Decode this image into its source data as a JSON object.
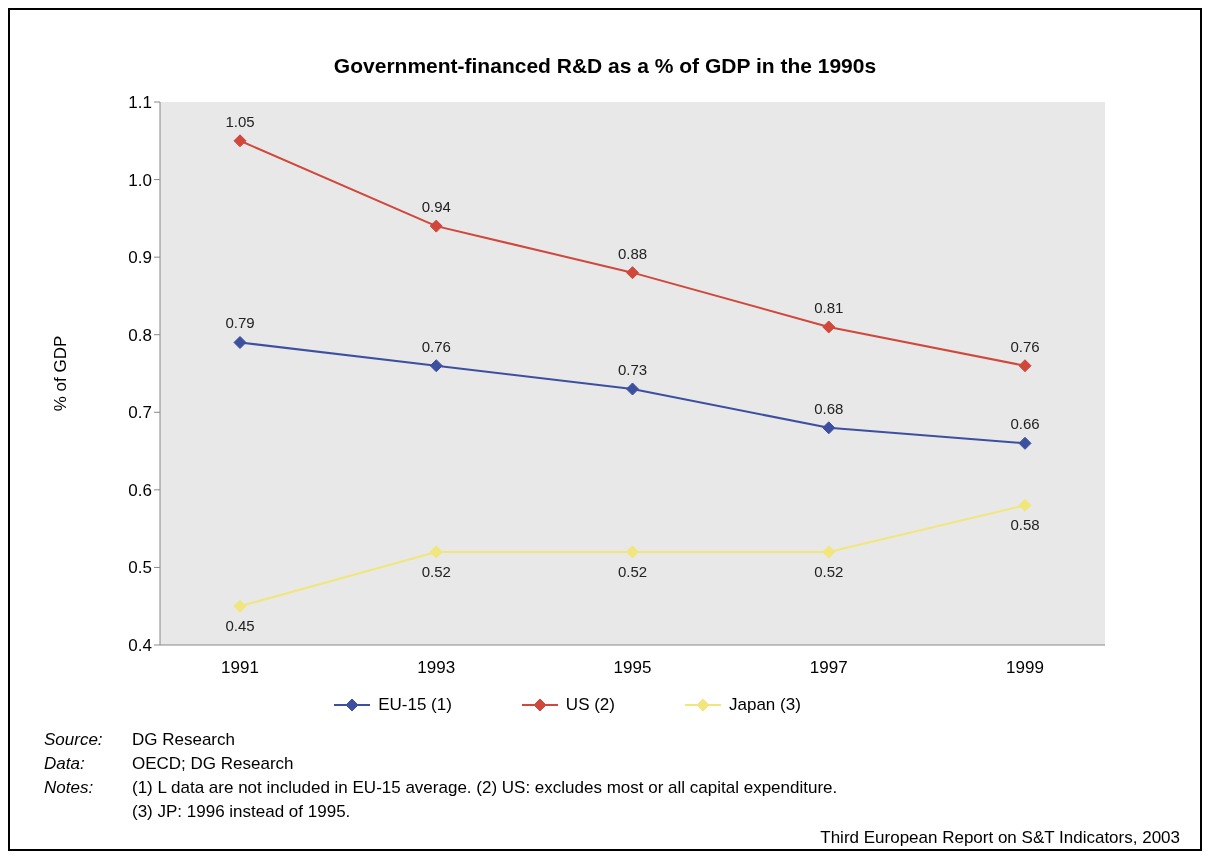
{
  "chart_data": {
    "type": "line",
    "title": "Government-financed R&D as a % of GDP in the 1990s",
    "ylabel": "% of GDP",
    "categories": [
      "1991",
      "1993",
      "1995",
      "1997",
      "1999"
    ],
    "series": [
      {
        "name": "EU-15 (1)",
        "color": "#3d4f9f",
        "values": [
          0.79,
          0.76,
          0.73,
          0.68,
          0.66
        ]
      },
      {
        "name": "US (2)",
        "color": "#d0473b",
        "values": [
          1.05,
          0.94,
          0.88,
          0.81,
          0.76
        ]
      },
      {
        "name": "Japan (3)",
        "color": "#f0e67c",
        "values": [
          0.45,
          0.52,
          0.52,
          0.52,
          0.58
        ]
      }
    ],
    "ylim": [
      0.4,
      1.1
    ],
    "yticks": [
      0.4,
      0.5,
      0.6,
      0.7,
      0.8,
      0.9,
      {
        "value": 1,
        "label": "1.0"
      },
      1.1
    ],
    "data_labels": true,
    "legend": "bottom",
    "marker": "diamond",
    "line_style": "solid",
    "annotations": [
      "Source: DG Research",
      "Data: OECD; DG Research",
      "Notes: (1) L data are not included in EU-15 average. (2) US: excludes most or all capital expenditure.",
      "(3) JP: 1996 instead of 1995.",
      "Third European Report on S&T Indicators, 2003"
    ]
  }
}
